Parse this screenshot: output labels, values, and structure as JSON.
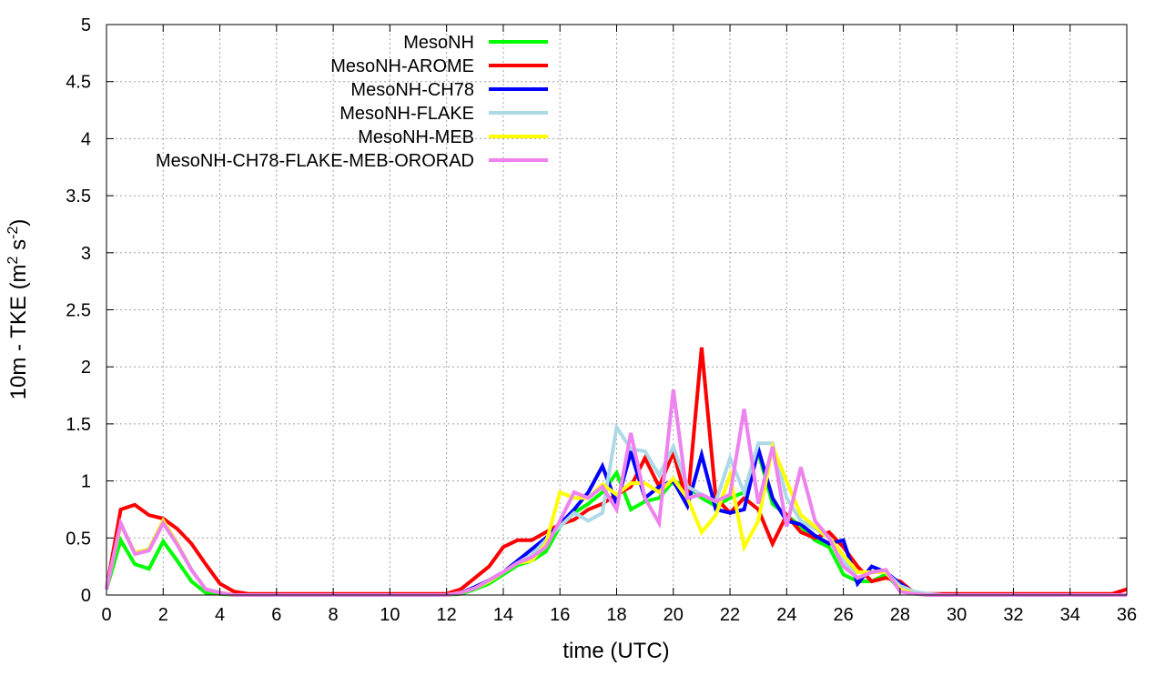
{
  "chart_data": {
    "type": "line",
    "title": "",
    "xlabel": "time (UTC)",
    "ylabel_main": "10m - TKE (m",
    "ylabel_sup1": "2",
    "ylabel_mid": " s",
    "ylabel_sup2": "-2",
    "ylabel_end": ")",
    "xlim": [
      0,
      36
    ],
    "ylim": [
      0,
      5
    ],
    "xticks": [
      "0",
      "2",
      "4",
      "6",
      "8",
      "10",
      "12",
      "14",
      "16",
      "18",
      "20",
      "22",
      "24",
      "26",
      "28",
      "30",
      "32",
      "34",
      "36"
    ],
    "yticks": [
      "0",
      "0.5",
      "1",
      "1.5",
      "2",
      "2.5",
      "3",
      "3.5",
      "4",
      "4.5",
      "5"
    ],
    "grid": true,
    "legend_position": "top-left",
    "x": [
      0,
      0.5,
      1,
      1.5,
      2,
      2.5,
      3,
      3.5,
      4,
      4.5,
      5,
      5.5,
      6,
      6.5,
      7,
      7.5,
      8,
      8.5,
      9,
      9.5,
      10,
      10.5,
      11,
      11.5,
      12,
      12.5,
      13,
      13.5,
      14,
      14.5,
      15,
      15.5,
      16,
      16.5,
      17,
      17.5,
      18,
      18.5,
      19,
      19.5,
      20,
      20.5,
      21,
      21.5,
      22,
      22.5,
      23,
      23.5,
      24,
      24.5,
      25,
      25.5,
      26,
      26.5,
      27,
      27.5,
      28,
      28.5,
      29,
      29.5,
      30,
      30.5,
      31,
      31.5,
      32,
      32.5,
      33,
      33.5,
      34,
      34.5,
      35,
      35.5,
      36
    ],
    "series": [
      {
        "name": "MesoNH",
        "color": "#00ff00",
        "values": [
          0.05,
          0.48,
          0.27,
          0.23,
          0.47,
          0.3,
          0.12,
          0.02,
          0.01,
          0,
          0,
          0,
          0,
          0,
          0,
          0,
          0,
          0,
          0,
          0,
          0,
          0,
          0,
          0,
          0,
          0.01,
          0.05,
          0.1,
          0.18,
          0.26,
          0.3,
          0.38,
          0.6,
          0.72,
          0.8,
          0.9,
          1.07,
          0.75,
          0.82,
          0.85,
          1.0,
          0.95,
          0.85,
          0.78,
          0.85,
          0.9,
          1.25,
          0.8,
          0.7,
          0.6,
          0.48,
          0.42,
          0.18,
          0.12,
          0.12,
          0.18,
          0.05,
          0.01,
          0,
          0,
          0,
          0,
          0,
          0,
          0,
          0,
          0,
          0,
          0,
          0,
          0,
          0,
          0
        ]
      },
      {
        "name": "MesoNH-AROME",
        "color": "#ff0000",
        "values": [
          0.05,
          0.75,
          0.79,
          0.7,
          0.67,
          0.58,
          0.45,
          0.27,
          0.1,
          0.03,
          0.01,
          0.01,
          0.01,
          0.01,
          0.01,
          0.01,
          0.01,
          0.01,
          0.01,
          0.01,
          0.01,
          0.01,
          0.01,
          0.01,
          0.01,
          0.05,
          0.15,
          0.25,
          0.42,
          0.48,
          0.48,
          0.55,
          0.62,
          0.66,
          0.75,
          0.8,
          0.88,
          0.95,
          1.2,
          0.95,
          1.25,
          0.8,
          2.17,
          0.85,
          0.72,
          0.85,
          0.75,
          0.45,
          0.7,
          0.55,
          0.5,
          0.55,
          0.42,
          0.25,
          0.12,
          0.15,
          0.12,
          0.02,
          0.01,
          0.01,
          0.01,
          0.01,
          0.01,
          0.01,
          0.01,
          0.01,
          0.01,
          0.01,
          0.01,
          0.01,
          0.01,
          0.01,
          0.05
        ]
      },
      {
        "name": "MesoNH-CH78",
        "color": "#0000ff",
        "values": [
          0.05,
          0.62,
          0.37,
          0.4,
          0.65,
          0.45,
          0.22,
          0.05,
          0.02,
          0,
          0,
          0,
          0,
          0,
          0,
          0,
          0,
          0,
          0,
          0,
          0,
          0,
          0,
          0,
          0,
          0.02,
          0.07,
          0.13,
          0.2,
          0.3,
          0.4,
          0.5,
          0.62,
          0.75,
          0.9,
          1.13,
          0.8,
          1.25,
          0.85,
          0.95,
          1.0,
          0.78,
          1.23,
          0.75,
          0.72,
          0.75,
          1.28,
          0.85,
          0.65,
          0.62,
          0.52,
          0.45,
          0.48,
          0.1,
          0.25,
          0.2,
          0.1,
          0.02,
          0,
          0,
          0,
          0,
          0,
          0,
          0,
          0,
          0,
          0,
          0,
          0,
          0,
          0,
          0
        ]
      },
      {
        "name": "MesoNH-FLAKE",
        "color": "#add8e6",
        "values": [
          0.05,
          0.62,
          0.37,
          0.4,
          0.65,
          0.45,
          0.22,
          0.05,
          0.02,
          0,
          0,
          0,
          0,
          0,
          0,
          0,
          0,
          0,
          0,
          0,
          0,
          0,
          0,
          0,
          0,
          0.02,
          0.06,
          0.12,
          0.2,
          0.28,
          0.35,
          0.48,
          0.6,
          0.72,
          0.65,
          0.72,
          1.47,
          1.28,
          1.26,
          1.05,
          1.3,
          0.95,
          0.88,
          0.82,
          1.2,
          0.9,
          1.33,
          1.33,
          0.85,
          0.65,
          0.58,
          0.5,
          0.3,
          0.15,
          0.2,
          0.2,
          0.08,
          0.03,
          0.01,
          0,
          0,
          0,
          0,
          0,
          0,
          0,
          0,
          0,
          0,
          0,
          0,
          0,
          0
        ]
      },
      {
        "name": "MesoNH-MEB",
        "color": "#ffff00",
        "values": [
          0.05,
          0.62,
          0.37,
          0.4,
          0.65,
          0.45,
          0.22,
          0.05,
          0.02,
          0,
          0,
          0,
          0,
          0,
          0,
          0,
          0,
          0,
          0,
          0,
          0,
          0,
          0,
          0,
          0,
          0.02,
          0.06,
          0.12,
          0.2,
          0.28,
          0.3,
          0.45,
          0.9,
          0.85,
          0.85,
          0.97,
          0.88,
          0.98,
          0.98,
          0.9,
          1.02,
          0.85,
          0.55,
          0.7,
          1.05,
          0.42,
          0.65,
          1.3,
          1.0,
          0.7,
          0.6,
          0.5,
          0.35,
          0.2,
          0.2,
          0.2,
          0.05,
          0.01,
          0,
          0,
          0,
          0,
          0,
          0,
          0,
          0,
          0,
          0,
          0,
          0,
          0,
          0,
          0
        ]
      },
      {
        "name": "MesoNH-CH78-FLAKE-MEB-ORORAD",
        "color": "#ee82ee",
        "values": [
          0.05,
          0.63,
          0.36,
          0.39,
          0.63,
          0.44,
          0.22,
          0.05,
          0.02,
          0,
          0,
          0,
          0,
          0,
          0,
          0,
          0,
          0,
          0,
          0,
          0,
          0,
          0,
          0,
          0,
          0.02,
          0.06,
          0.13,
          0.2,
          0.28,
          0.33,
          0.42,
          0.65,
          0.9,
          0.85,
          0.95,
          0.75,
          1.42,
          0.85,
          0.63,
          1.8,
          0.85,
          0.88,
          0.82,
          0.88,
          1.63,
          0.8,
          1.3,
          0.6,
          1.12,
          0.65,
          0.5,
          0.25,
          0.15,
          0.2,
          0.22,
          0.03,
          0.01,
          0,
          0,
          0,
          0,
          0,
          0,
          0,
          0,
          0,
          0,
          0,
          0,
          0,
          0,
          0
        ]
      }
    ]
  }
}
